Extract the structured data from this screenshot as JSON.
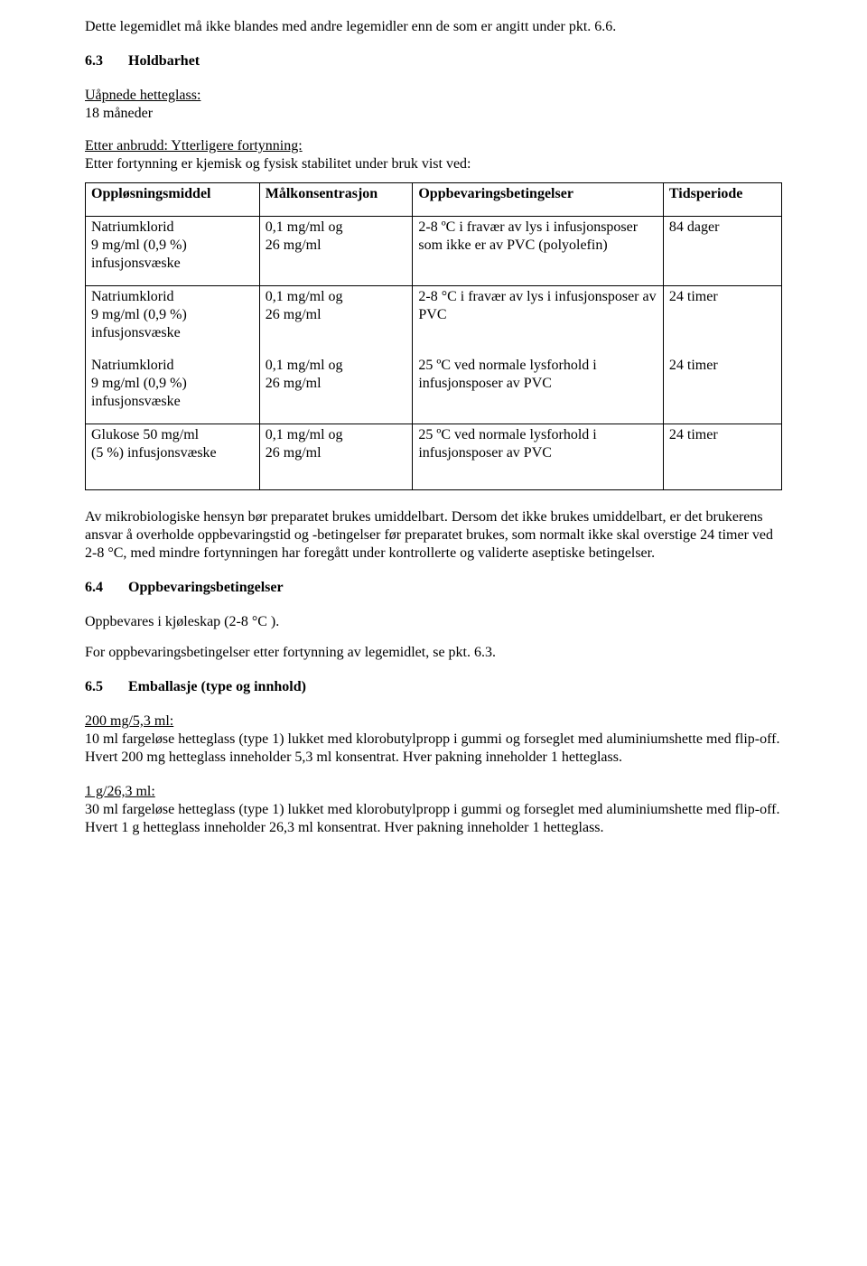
{
  "intro_line": "Dette legemidlet må ikke blandes med andre legemidler enn de som er angitt under pkt. 6.6.",
  "section_6_3": {
    "num": "6.3",
    "title": "Holdbarhet"
  },
  "uapnede_label": "Uåpnede hetteglass:",
  "uapnede_value": "18 måneder",
  "etter_label": "Etter anbrudd: Ytterligere fortynning:",
  "etter_value": "Etter fortynning er kjemisk og fysisk stabilitet under bruk vist ved:",
  "table": {
    "headers": [
      "Oppløsningsmiddel",
      "Målkonsentrasjon",
      "Oppbevaringsbetingelser",
      "Tidsperiode"
    ],
    "rows": [
      {
        "c1": "Natriumklorid\n9 mg/ml (0,9 %)\ninfusjonsvæske",
        "c2": "0,1 mg/ml og\n26 mg/ml",
        "c3": "2-8 ºC i fravær av lys i infusjonsposer som ikke er av PVC (polyolefin)",
        "c4": "84 dager",
        "sep_top": false
      },
      {
        "c1": "Natriumklorid\n9 mg/ml (0,9 %)\ninfusjonsvæske",
        "c2": "0,1 mg/ml og\n26 mg/ml",
        "c3": "2-8 °C i fravær av lys i infusjonsposer av PVC",
        "c4": "24 timer",
        "sep_top": true,
        "merge_below": true
      },
      {
        "c1": "Natriumklorid\n9 mg/ml (0,9 %)\ninfusjonsvæske",
        "c2": "0,1 mg/ml og\n26 mg/ml",
        "c3": "25 ºC ved normale lysforhold i infusjonsposer av PVC",
        "c4": "24 timer"
      },
      {
        "c1": "Glukose 50 mg/ml\n(5 %) infusjonsvæske",
        "c2": "0,1 mg/ml og\n26 mg/ml",
        "c3": "25 ºC ved normale lysforhold i infusjonsposer av PVC",
        "c4": "24 timer",
        "sep_top": true
      }
    ]
  },
  "after_table_para": "Av mikrobiologiske hensyn bør preparatet brukes umiddelbart. Dersom det ikke brukes umiddelbart, er det brukerens ansvar å overholde oppbevaringstid og -betingelser før preparatet brukes, som normalt ikke skal overstige 24 timer ved 2-8 °C, med mindre fortynningen har foregått under kontrollerte og validerte aseptiske betingelser.",
  "section_6_4": {
    "num": "6.4",
    "title": "Oppbevaringsbetingelser"
  },
  "s64_line1": "Oppbevares i kjøleskap (2-8 °C ).",
  "s64_line2": "For oppbevaringsbetingelser etter fortynning av legemidlet, se pkt. 6.3.",
  "section_6_5": {
    "num": "6.5",
    "title": "Emballasje (type og innhold)"
  },
  "pack1_label": "200 mg/5,3 ml:",
  "pack1_body": "10 ml fargeløse hetteglass (type 1) lukket med klorobutylpropp i gummi og forseglet med aluminiumshette med flip-off.\nHvert 200 mg hetteglass inneholder 5,3 ml konsentrat. Hver pakning inneholder 1 hetteglass.",
  "pack2_label": "1 g/26,3 ml:",
  "pack2_body": "30 ml fargeløse hetteglass (type 1) lukket med klorobutylpropp i gummi og forseglet med aluminiumshette med flip-off.\nHvert 1 g hetteglass inneholder 26,3 ml konsentrat. Hver pakning inneholder 1 hetteglass."
}
